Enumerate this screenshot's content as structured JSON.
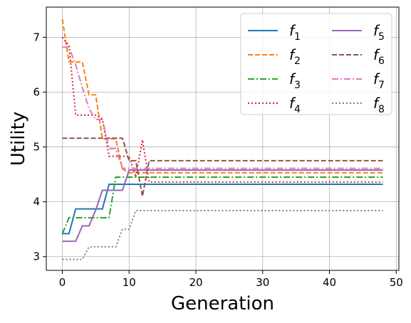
{
  "chart_data": {
    "type": "line",
    "xlabel": "Generation",
    "ylabel": "Utility",
    "xlim": [
      -2.4,
      50.4
    ],
    "ylim": [
      2.75,
      7.55
    ],
    "xticks": [
      0,
      10,
      20,
      30,
      40,
      50
    ],
    "yticks": [
      3,
      4,
      5,
      6,
      7
    ],
    "grid": true,
    "legend": {
      "placement": "top-right",
      "columns": 2
    },
    "series": [
      {
        "name": "f1",
        "label_base": "f",
        "label_sub": "1",
        "color": "#1f77b4",
        "dash": "solid",
        "x": [
          0,
          1,
          2,
          3,
          4,
          5,
          6,
          7,
          8,
          9,
          10,
          11,
          12,
          48
        ],
        "y": [
          3.42,
          3.42,
          3.87,
          3.87,
          3.87,
          3.87,
          3.87,
          4.32,
          4.32,
          4.32,
          4.32,
          4.32,
          4.32,
          4.32
        ]
      },
      {
        "name": "f2",
        "label_base": "f",
        "label_sub": "2",
        "color": "#ff7f0e",
        "dash": "dashed",
        "x": [
          0,
          1,
          2,
          3,
          4,
          5,
          6,
          7,
          8,
          9,
          10,
          11,
          12,
          48
        ],
        "y": [
          7.33,
          6.55,
          6.55,
          6.55,
          5.95,
          5.95,
          5.15,
          5.15,
          5.15,
          4.6,
          4.53,
          4.53,
          4.53,
          4.53
        ]
      },
      {
        "name": "f3",
        "label_base": "f",
        "label_sub": "3",
        "color": "#2ca02c",
        "dash": "dashdot",
        "x": [
          0,
          1,
          2,
          3,
          4,
          5,
          6,
          7,
          8,
          9,
          10,
          11,
          12,
          48
        ],
        "y": [
          3.42,
          3.71,
          3.71,
          3.71,
          3.71,
          3.71,
          3.71,
          3.71,
          4.45,
          4.45,
          4.45,
          4.45,
          4.45,
          4.45
        ]
      },
      {
        "name": "f4",
        "label_base": "f",
        "label_sub": "4",
        "color": "#d62728",
        "dash": "dotted",
        "x": [
          0,
          1,
          2,
          3,
          4,
          5,
          6,
          7,
          8,
          9,
          10,
          11,
          12,
          13,
          48
        ],
        "y": [
          7.0,
          6.85,
          5.58,
          5.58,
          5.58,
          5.58,
          5.51,
          4.83,
          4.83,
          4.83,
          4.83,
          4.45,
          5.13,
          4.36,
          4.36
        ]
      },
      {
        "name": "f5",
        "label_base": "f",
        "label_sub": "5",
        "color": "#9467bd",
        "dash": "solid",
        "x": [
          0,
          1,
          2,
          3,
          4,
          5,
          6,
          7,
          8,
          9,
          10,
          11,
          12,
          48
        ],
        "y": [
          3.28,
          3.28,
          3.28,
          3.56,
          3.56,
          3.85,
          4.21,
          4.21,
          4.21,
          4.21,
          4.58,
          4.58,
          4.58,
          4.58
        ]
      },
      {
        "name": "f6",
        "label_base": "f",
        "label_sub": "6",
        "color": "#8c564b",
        "dash": "dashed",
        "x": [
          0,
          1,
          2,
          3,
          4,
          5,
          6,
          7,
          8,
          9,
          10,
          11,
          12,
          13,
          48
        ],
        "y": [
          5.16,
          5.16,
          5.16,
          5.16,
          5.16,
          5.16,
          5.16,
          5.16,
          5.16,
          5.16,
          4.75,
          4.75,
          4.1,
          4.75,
          4.75
        ]
      },
      {
        "name": "f7",
        "label_base": "f",
        "label_sub": "7",
        "color": "#e377c2",
        "dash": "dashdot",
        "x": [
          0,
          1,
          2,
          3,
          4,
          5,
          6,
          7,
          8,
          9,
          10,
          11,
          12,
          48
        ],
        "y": [
          6.82,
          6.82,
          6.5,
          6.08,
          5.7,
          5.5,
          5.5,
          4.97,
          4.97,
          4.61,
          4.61,
          4.61,
          4.61,
          4.61
        ]
      },
      {
        "name": "f8",
        "label_base": "f",
        "label_sub": "8",
        "color": "#7f7f7f",
        "dash": "dotted",
        "x": [
          0,
          1,
          2,
          3,
          4,
          5,
          6,
          7,
          8,
          9,
          10,
          11,
          12,
          48
        ],
        "y": [
          2.95,
          2.95,
          2.95,
          2.95,
          3.18,
          3.18,
          3.18,
          3.18,
          3.18,
          3.5,
          3.5,
          3.84,
          3.84,
          3.84
        ]
      }
    ]
  }
}
